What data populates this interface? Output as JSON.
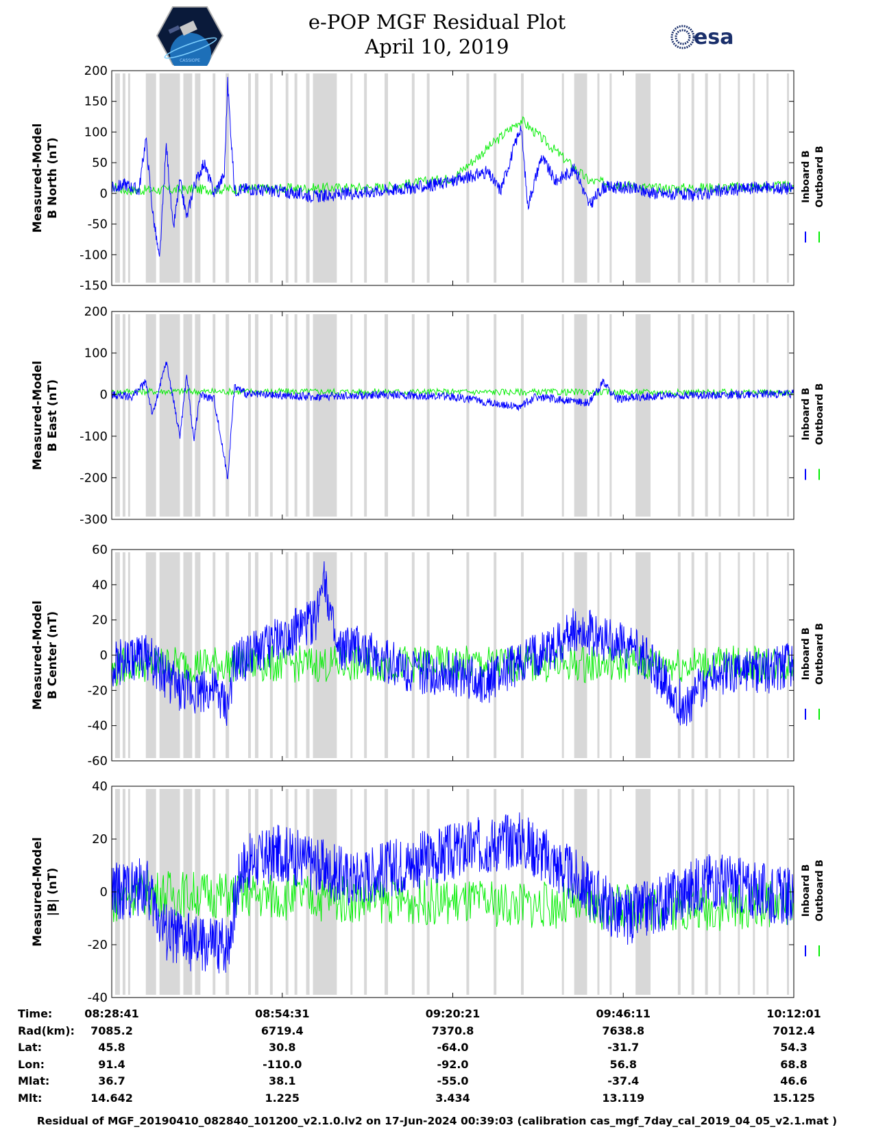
{
  "title": {
    "line1": "e-POP MGF Residual Plot",
    "line2": "April 10, 2019"
  },
  "logos": {
    "left": "CASSIOPE",
    "right": "esa"
  },
  "colors": {
    "inboard": "#0000ff",
    "outboard": "#00ee00",
    "shade": "#d8d8d8",
    "axis": "#000000"
  },
  "legend": {
    "inboard": "Inboard B",
    "outboard": "Outboard B"
  },
  "chart_data": [
    {
      "type": "line",
      "ylabel": [
        "Measured-Model",
        "B North (nT)"
      ],
      "ylim": [
        -150,
        200
      ],
      "yticks": [
        -150,
        -100,
        -50,
        0,
        50,
        100,
        150,
        200
      ],
      "series": [
        {
          "name": "Inboard B",
          "values": [
            [
              0,
              8
            ],
            [
              0.02,
              15
            ],
            [
              0.04,
              5
            ],
            [
              0.05,
              90
            ],
            [
              0.06,
              -30
            ],
            [
              0.07,
              -110
            ],
            [
              0.08,
              80
            ],
            [
              0.09,
              -60
            ],
            [
              0.1,
              20
            ],
            [
              0.11,
              -40
            ],
            [
              0.12,
              10
            ],
            [
              0.135,
              50
            ],
            [
              0.15,
              0
            ],
            [
              0.165,
              30
            ],
            [
              0.17,
              180
            ],
            [
              0.18,
              5
            ],
            [
              0.2,
              8
            ],
            [
              0.22,
              5
            ],
            [
              0.25,
              3
            ],
            [
              0.3,
              -5
            ],
            [
              0.35,
              0
            ],
            [
              0.4,
              5
            ],
            [
              0.45,
              10
            ],
            [
              0.5,
              20
            ],
            [
              0.55,
              35
            ],
            [
              0.57,
              5
            ],
            [
              0.6,
              110
            ],
            [
              0.61,
              -20
            ],
            [
              0.63,
              60
            ],
            [
              0.65,
              20
            ],
            [
              0.68,
              40
            ],
            [
              0.7,
              -20
            ],
            [
              0.72,
              10
            ],
            [
              0.75,
              10
            ],
            [
              0.8,
              0
            ],
            [
              0.85,
              -3
            ],
            [
              0.9,
              5
            ],
            [
              0.95,
              10
            ],
            [
              1.0,
              8
            ]
          ]
        },
        {
          "name": "Outboard B",
          "values": [
            [
              0,
              12
            ],
            [
              0.02,
              5
            ],
            [
              0.4,
              10
            ],
            [
              0.5,
              25
            ],
            [
              0.6,
              120
            ],
            [
              0.7,
              20
            ],
            [
              0.8,
              8
            ],
            [
              0.9,
              10
            ],
            [
              1.0,
              12
            ]
          ]
        }
      ]
    },
    {
      "type": "line",
      "ylabel": [
        "Measured-Model",
        "B East (nT)"
      ],
      "ylim": [
        -300,
        200
      ],
      "yticks": [
        -300,
        -200,
        -100,
        0,
        100,
        200
      ],
      "series": [
        {
          "name": "Inboard B",
          "values": [
            [
              0,
              0
            ],
            [
              0.03,
              -5
            ],
            [
              0.05,
              30
            ],
            [
              0.06,
              -50
            ],
            [
              0.08,
              80
            ],
            [
              0.1,
              -100
            ],
            [
              0.11,
              50
            ],
            [
              0.12,
              -110
            ],
            [
              0.13,
              0
            ],
            [
              0.15,
              -10
            ],
            [
              0.17,
              -200
            ],
            [
              0.18,
              20
            ],
            [
              0.2,
              0
            ],
            [
              0.3,
              -5
            ],
            [
              0.4,
              0
            ],
            [
              0.5,
              -5
            ],
            [
              0.6,
              -30
            ],
            [
              0.62,
              -5
            ],
            [
              0.7,
              -20
            ],
            [
              0.72,
              30
            ],
            [
              0.74,
              -10
            ],
            [
              0.8,
              -3
            ],
            [
              0.9,
              0
            ],
            [
              1.0,
              2
            ]
          ]
        },
        {
          "name": "Outboard B",
          "values": [
            [
              0,
              5
            ],
            [
              0.02,
              8
            ],
            [
              1.0,
              5
            ]
          ]
        }
      ]
    },
    {
      "type": "line",
      "ylabel": [
        "Measured-Model",
        "B Center (nT)"
      ],
      "ylim": [
        -60,
        60
      ],
      "yticks": [
        -60,
        -40,
        -20,
        0,
        20,
        40,
        60
      ],
      "series": [
        {
          "name": "Inboard B",
          "values": [
            [
              0,
              -5
            ],
            [
              0.05,
              0
            ],
            [
              0.1,
              -20
            ],
            [
              0.15,
              -20
            ],
            [
              0.17,
              -30
            ],
            [
              0.18,
              -5
            ],
            [
              0.25,
              10
            ],
            [
              0.3,
              20
            ],
            [
              0.31,
              50
            ],
            [
              0.33,
              0
            ],
            [
              0.35,
              5
            ],
            [
              0.45,
              -10
            ],
            [
              0.5,
              -10
            ],
            [
              0.55,
              -15
            ],
            [
              0.6,
              -5
            ],
            [
              0.65,
              5
            ],
            [
              0.68,
              15
            ],
            [
              0.72,
              10
            ],
            [
              0.78,
              0
            ],
            [
              0.84,
              -30
            ],
            [
              0.88,
              -10
            ],
            [
              0.95,
              -10
            ],
            [
              1.0,
              -5
            ]
          ]
        },
        {
          "name": "Outboard B",
          "values": [
            [
              0,
              -10
            ],
            [
              0.02,
              -5
            ],
            [
              1.0,
              -5
            ]
          ]
        }
      ]
    },
    {
      "type": "line",
      "ylabel": [
        "Measured-Model",
        "|B| (nT)"
      ],
      "ylim": [
        -40,
        40
      ],
      "yticks": [
        -40,
        -20,
        0,
        20,
        40
      ],
      "series": [
        {
          "name": "Inboard B",
          "values": [
            [
              0,
              0
            ],
            [
              0.05,
              2
            ],
            [
              0.08,
              -15
            ],
            [
              0.12,
              -20
            ],
            [
              0.17,
              -20
            ],
            [
              0.19,
              10
            ],
            [
              0.25,
              15
            ],
            [
              0.35,
              5
            ],
            [
              0.45,
              12
            ],
            [
              0.55,
              18
            ],
            [
              0.6,
              20
            ],
            [
              0.68,
              5
            ],
            [
              0.75,
              -10
            ],
            [
              0.8,
              -5
            ],
            [
              0.88,
              5
            ],
            [
              0.95,
              0
            ],
            [
              1.0,
              -2
            ]
          ]
        },
        {
          "name": "Outboard B",
          "values": [
            [
              0,
              -4
            ],
            [
              0.02,
              0
            ],
            [
              0.75,
              -6
            ],
            [
              0.9,
              -6
            ],
            [
              1.0,
              -4
            ]
          ]
        }
      ]
    }
  ],
  "orbit_info": {
    "row_labels": [
      "Time:",
      "Rad(km):",
      "Lat:",
      "Lon:",
      "Mlat:",
      "Mlt:"
    ],
    "columns": [
      [
        "08:28:41",
        "7085.2",
        "45.8",
        "91.4",
        "36.7",
        "14.642"
      ],
      [
        "08:54:31",
        "6719.4",
        "30.8",
        "-110.0",
        "38.1",
        "1.225"
      ],
      [
        "09:20:21",
        "7370.8",
        "-64.0",
        "-92.0",
        "-55.0",
        "3.434"
      ],
      [
        "09:46:11",
        "7638.8",
        "-31.7",
        "56.8",
        "-37.4",
        "13.119"
      ],
      [
        "10:12:01",
        "7012.4",
        "54.3",
        "68.8",
        "46.6",
        "15.125"
      ]
    ]
  },
  "footer": "Residual of MGF_20190410_082840_101200_v2.1.0.lv2 on 17-Jun-2024 00:39:03 (calibration cas_mgf_7day_cal_2019_04_05_v2.1.mat )"
}
